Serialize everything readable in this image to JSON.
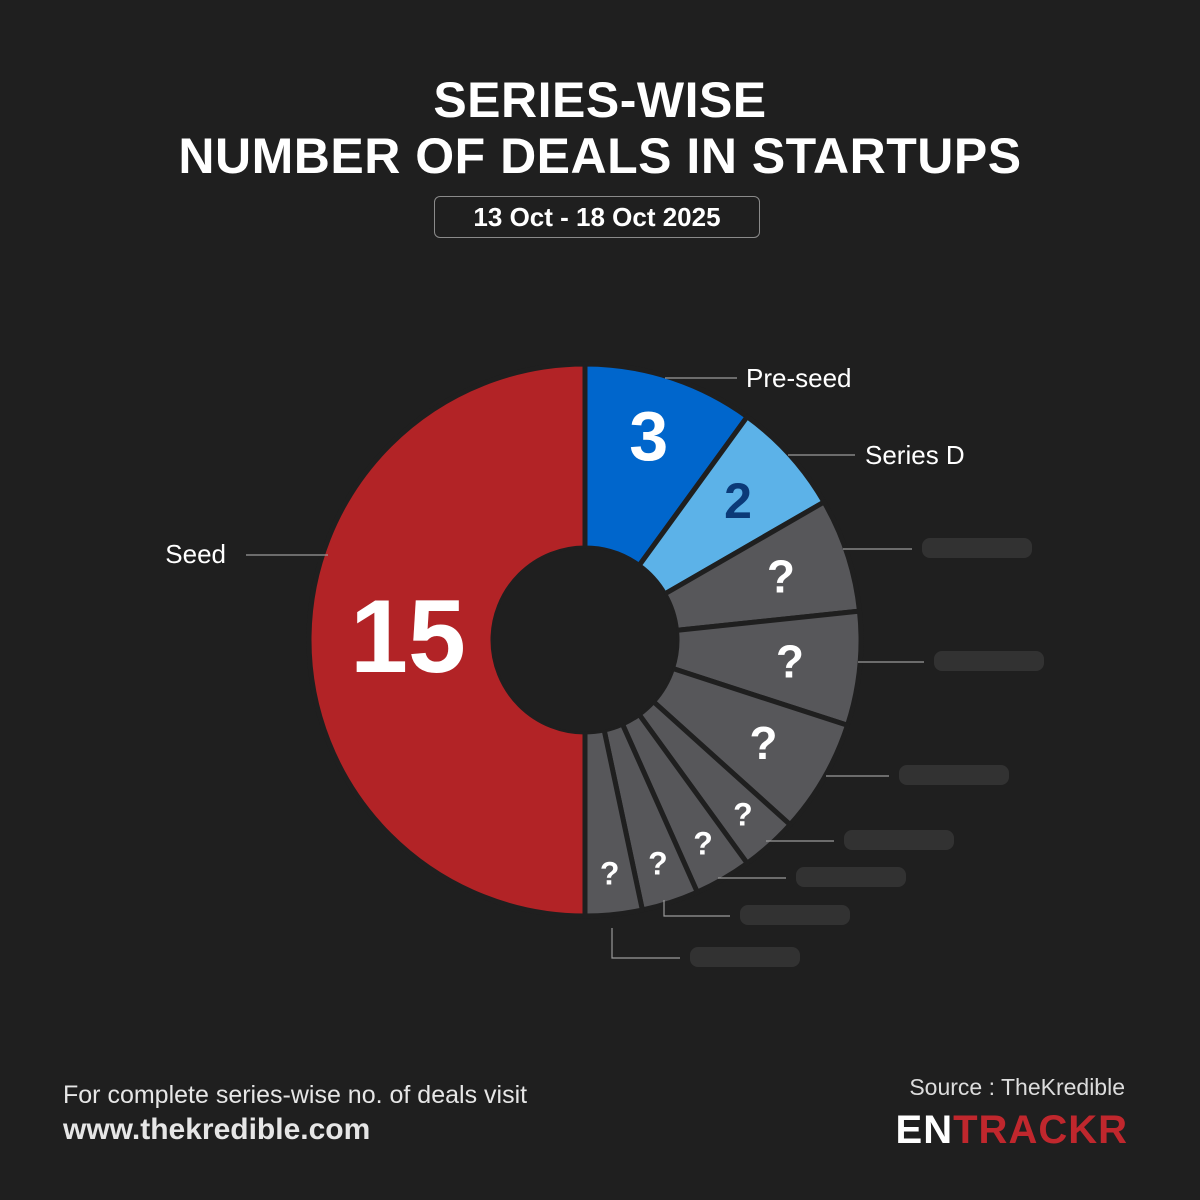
{
  "header": {
    "title_line1": "SERIES-WISE",
    "title_line2": "NUMBER OF DEALS IN STARTUPS",
    "date_range": "13 Oct - 18 Oct 2025"
  },
  "chart_data": {
    "type": "pie",
    "style": "donut",
    "slices": [
      {
        "label": "Seed",
        "value": 15,
        "value_label": "15",
        "color": "#b22326",
        "label_side": "left"
      },
      {
        "label": "Pre-seed",
        "value": 3,
        "value_label": "3",
        "color": "#0066cc",
        "label_side": "right"
      },
      {
        "label": "Series D",
        "value": 2,
        "value_label": "2",
        "color": "#5cb2e8",
        "value_color": "#0b3a78",
        "label_side": "right"
      },
      {
        "label": "",
        "value": 2,
        "value_label": "?",
        "color": "#57575a",
        "label_side": "right",
        "obscured": true
      },
      {
        "label": "",
        "value": 2,
        "value_label": "?",
        "color": "#57575a",
        "label_side": "right",
        "obscured": true
      },
      {
        "label": "",
        "value": 2,
        "value_label": "?",
        "color": "#57575a",
        "label_side": "right",
        "obscured": true
      },
      {
        "label": "",
        "value": 1,
        "value_label": "?",
        "color": "#57575a",
        "label_side": "right",
        "obscured": true
      },
      {
        "label": "",
        "value": 1,
        "value_label": "?",
        "color": "#57575a",
        "label_side": "right",
        "obscured": true
      },
      {
        "label": "",
        "value": 1,
        "value_label": "?",
        "color": "#57575a",
        "label_side": "right",
        "obscured": true
      },
      {
        "label": "",
        "value": 1,
        "value_label": "?",
        "color": "#57575a",
        "label_side": "right",
        "obscured": true
      }
    ]
  },
  "footer": {
    "note": "For complete series-wise no. of deals visit",
    "url": "www.thekredible.com",
    "source": "Source : TheKredible",
    "brand_part1": "EN",
    "brand_part2": "TRACKR"
  }
}
